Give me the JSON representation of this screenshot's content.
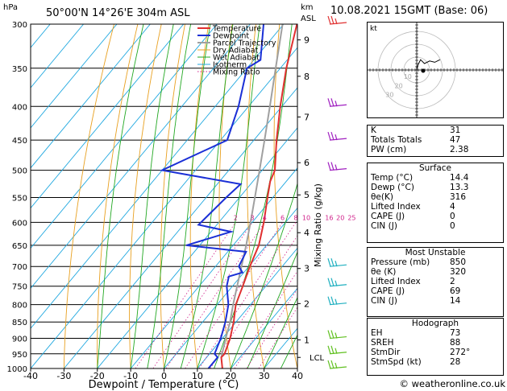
{
  "header": {
    "location": "50°00'N  14°26'E  304m  ASL",
    "hpa_label": "hPa",
    "km_label": "km",
    "asl_label": "ASL",
    "datestamp": "10.08.2021  15GMT  (Base: 06)"
  },
  "axes": {
    "xlabel": "Dewpoint / Temperature (°C)",
    "right_label": "Mixing Ratio (g/kg)",
    "pressure_ticks": [
      300,
      350,
      400,
      450,
      500,
      550,
      600,
      650,
      700,
      750,
      800,
      850,
      900,
      950,
      1000
    ],
    "temp_ticks": [
      -40,
      -30,
      -20,
      -10,
      0,
      10,
      20,
      30,
      40
    ],
    "km_ticks": [
      {
        "label": "9",
        "p": 317
      },
      {
        "label": "8",
        "p": 360
      },
      {
        "label": "7",
        "p": 415
      },
      {
        "label": "6",
        "p": 487
      },
      {
        "label": "5",
        "p": 545
      },
      {
        "label": "4",
        "p": 622
      },
      {
        "label": "3",
        "p": 705
      },
      {
        "label": "2",
        "p": 797
      },
      {
        "label": "1",
        "p": 905
      }
    ],
    "lcl_label": "LCL",
    "lcl_p": 962,
    "mixing_labels": [
      "2",
      "3",
      "4",
      "6",
      "8",
      "10",
      "16",
      "20",
      "25"
    ],
    "mixing_ratios": [
      2,
      3,
      4,
      6,
      8,
      10,
      16,
      20,
      25
    ]
  },
  "legend": [
    "Temperature",
    "Dewpoint",
    "Parcel Trajectory",
    "Dry Adiabat",
    "Wet Adiabat",
    "Isotherm",
    "Mixing Ratio"
  ],
  "colors": {
    "temperature": "#e03030",
    "dewpoint": "#1a2fd6",
    "parcel": "#a0a0a0",
    "dry_adiabat": "#e8a020",
    "wet_adiabat": "#22a822",
    "isotherm": "#20a8e0",
    "mixing_ratio": "#d0208a"
  },
  "chart_data": {
    "type": "line",
    "title": "",
    "xlabel": "Dewpoint / Temperature (°C)",
    "ylabel": "hPa",
    "xlim": [
      -40,
      40
    ],
    "ylim": [
      1000,
      300
    ],
    "yscale": "log",
    "series": [
      {
        "name": "Temperature",
        "points": [
          [
            1000,
            17.5
          ],
          [
            962,
            14.4
          ],
          [
            950,
            14.5
          ],
          [
            900,
            12.3
          ],
          [
            850,
            9.3
          ],
          [
            800,
            5.6
          ],
          [
            750,
            3.1
          ],
          [
            700,
            0.3
          ],
          [
            650,
            -2.3
          ],
          [
            600,
            -6.5
          ],
          [
            550,
            -11.6
          ],
          [
            520,
            -14.8
          ],
          [
            500,
            -16.2
          ],
          [
            450,
            -23.2
          ],
          [
            400,
            -30.5
          ],
          [
            350,
            -38.2
          ],
          [
            300,
            -46
          ]
        ]
      },
      {
        "name": "Dewpoint",
        "points": [
          [
            1000,
            13.3
          ],
          [
            962,
            13.3
          ],
          [
            950,
            11.5
          ],
          [
            900,
            9.5
          ],
          [
            850,
            6.8
          ],
          [
            800,
            3.4
          ],
          [
            750,
            -1.7
          ],
          [
            725,
            -3.5
          ],
          [
            715,
            -0.4
          ],
          [
            700,
            -3.0
          ],
          [
            665,
            -4.5
          ],
          [
            650,
            -24
          ],
          [
            620,
            -14
          ],
          [
            605,
            -25.5
          ],
          [
            550,
            -24
          ],
          [
            525,
            -23
          ],
          [
            500,
            -50
          ],
          [
            450,
            -38
          ],
          [
            400,
            -43
          ],
          [
            350,
            -50
          ],
          [
            340,
            -48
          ],
          [
            300,
            -56
          ]
        ]
      },
      {
        "name": "Parcel Trajectory",
        "points": [
          [
            962,
            14.4
          ],
          [
            900,
            11.0
          ],
          [
            850,
            8.2
          ],
          [
            800,
            4.8
          ],
          [
            750,
            1.4
          ],
          [
            700,
            -2.2
          ],
          [
            650,
            -6.1
          ],
          [
            600,
            -10.5
          ],
          [
            550,
            -15.4
          ],
          [
            500,
            -20.8
          ],
          [
            450,
            -26.8
          ],
          [
            400,
            -33.6
          ],
          [
            350,
            -41.4
          ],
          [
            300,
            -50.3
          ]
        ]
      }
    ]
  },
  "hodograph": {
    "label": "kt",
    "ring_labels": [
      "10",
      "20",
      "30"
    ],
    "path": [
      [
        0,
        0
      ],
      [
        1,
        4
      ],
      [
        3,
        8
      ],
      [
        6,
        5
      ],
      [
        10,
        7
      ],
      [
        14,
        6
      ],
      [
        18,
        8
      ]
    ]
  },
  "indices": {
    "rows": [
      {
        "label": "K",
        "value": "31"
      },
      {
        "label": "Totals Totals",
        "value": "47"
      },
      {
        "label": "PW (cm)",
        "value": "2.38"
      }
    ]
  },
  "surface": {
    "title": "Surface",
    "rows": [
      {
        "label": "Temp (°C)",
        "value": "14.4"
      },
      {
        "label": "Dewp (°C)",
        "value": "13.3"
      },
      {
        "label": "θe(K)",
        "value": "316"
      },
      {
        "label": "Lifted Index",
        "value": "4"
      },
      {
        "label": "CAPE (J)",
        "value": "0"
      },
      {
        "label": "CIN (J)",
        "value": "0"
      }
    ]
  },
  "unstable": {
    "title": "Most Unstable",
    "rows": [
      {
        "label": "Pressure (mb)",
        "value": "850"
      },
      {
        "label": "θe (K)",
        "value": "320"
      },
      {
        "label": "Lifted Index",
        "value": "2"
      },
      {
        "label": "CAPE (J)",
        "value": "69"
      },
      {
        "label": "CIN (J)",
        "value": "14"
      }
    ]
  },
  "hodo_table": {
    "title": "Hodograph",
    "rows": [
      {
        "label": "EH",
        "value": "73"
      },
      {
        "label": "SREH",
        "value": "88"
      },
      {
        "label": "StmDir",
        "value": "272°"
      },
      {
        "label": "StmSpd (kt)",
        "value": "28"
      }
    ]
  },
  "wind_barbs": [
    {
      "p": 300,
      "color": "#e03030"
    },
    {
      "p": 400,
      "color": "#a020c0"
    },
    {
      "p": 450,
      "color": "#a020c0"
    },
    {
      "p": 500,
      "color": "#a020c0"
    },
    {
      "p": 700,
      "color": "#20b0c0"
    },
    {
      "p": 750,
      "color": "#20b0c0"
    },
    {
      "p": 800,
      "color": "#20b0c0"
    },
    {
      "p": 900,
      "color": "#60c020"
    },
    {
      "p": 950,
      "color": "#60c020"
    },
    {
      "p": 1000,
      "color": "#60c020"
    }
  ],
  "copyright": "© weatheronline.co.uk"
}
